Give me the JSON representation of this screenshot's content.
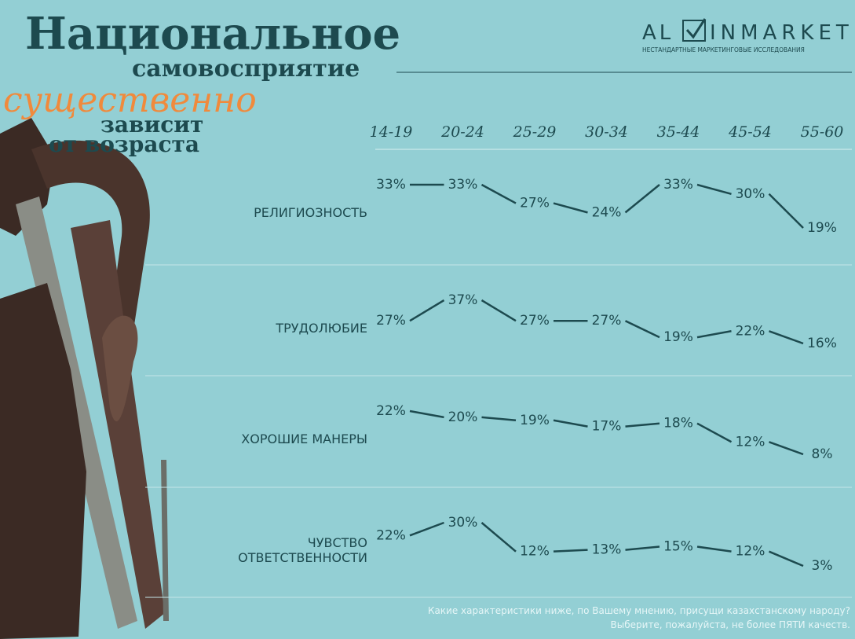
{
  "header": {
    "title_line1": "Национальное",
    "title_line2": "самовосприятие",
    "title_line3": "существенно",
    "title_line4": "зависит",
    "title_line5": "от возраста",
    "logo_left": "AL",
    "logo_right": "INMARKET",
    "logo_tagline": "НЕСТАНДАРТНЫЕ МАРКЕТИНГОВЫЕ ИССЛЕДОВАНИЯ"
  },
  "chart_data": {
    "type": "line",
    "categories": [
      "14-19",
      "20-24",
      "25-29",
      "30-34",
      "35-44",
      "45-54",
      "55-60"
    ],
    "series": [
      {
        "name": "РЕЛИГИОЗНОСТЬ",
        "color": "#1d4a4f",
        "values": [
          33,
          33,
          27,
          24,
          33,
          30,
          19
        ],
        "value_labels": [
          "33%",
          "33%",
          "27%",
          "24%",
          "33%",
          "30%",
          "19%"
        ]
      },
      {
        "name": "ТРУДОЛЮБИЕ",
        "color": "#1d4a4f",
        "values": [
          27,
          37,
          27,
          27,
          19,
          22,
          16
        ],
        "value_labels": [
          "27%",
          "37%",
          "27%",
          "27%",
          "19%",
          "22%",
          "16%"
        ]
      },
      {
        "name": "ХОРОШИЕ МАНЕРЫ",
        "color": "#1d4a4f",
        "values": [
          22,
          20,
          19,
          17,
          18,
          12,
          8
        ],
        "value_labels": [
          "22%",
          "20%",
          "19%",
          "17%",
          "18%",
          "12%",
          "8%"
        ]
      },
      {
        "name": "ЧУВСТВО ОТВЕТСТВЕННОСТИ",
        "color": "#1d4a4f",
        "values": [
          22,
          30,
          12,
          13,
          15,
          12,
          3
        ],
        "value_labels": [
          "22%",
          "30%",
          "12%",
          "13%",
          "15%",
          "12%",
          "3%"
        ]
      }
    ],
    "footnote": [
      "Какие характеристики ниже, по Вашему мнению, присущи казахстанскому народу?",
      "Выберите, пожалуйста, не более ПЯТИ качеств."
    ]
  }
}
